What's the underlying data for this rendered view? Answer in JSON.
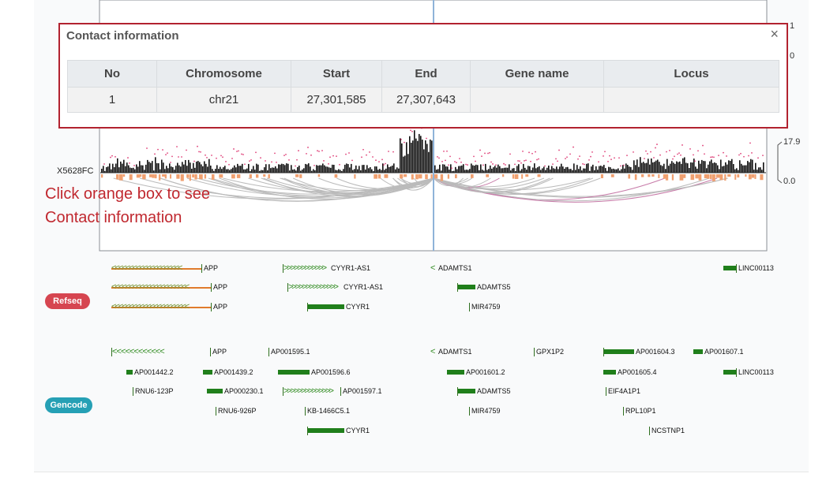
{
  "dialog": {
    "title": "Contact information",
    "close_glyph": "×",
    "columns": [
      "No",
      "Chromosome",
      "Start",
      "End",
      "Gene name",
      "Locus"
    ],
    "rows": [
      {
        "no": "1",
        "chromosome": "chr21",
        "start": "27,301,585",
        "end": "27,307,643",
        "gene_name": "",
        "locus": ""
      }
    ]
  },
  "track": {
    "sample_label": "X5628FC",
    "y_ticks_top": [
      "1",
      "0"
    ],
    "y_ticks_signal": [
      "17.9",
      "0.0"
    ]
  },
  "hint": {
    "line1": "Click orange box to see",
    "line2": "Contact information"
  },
  "badges": {
    "refseq": "Refseq",
    "gencode": "Gencode"
  },
  "refseq_genes": {
    "app1": "APP",
    "app2": "APP",
    "app3": "APP",
    "cyyr1_as1_a": "CYYR1-AS1",
    "cyyr1_as1_b": "CYYR1-AS1",
    "cyyr1": "CYYR1",
    "adamts1": "ADAMTS1",
    "adamts5": "ADAMTS5",
    "mir4759": "MIR4759",
    "linc00113": "LINC00113"
  },
  "gencode_genes": {
    "app": "APP",
    "ap001595_1": "AP001595.1",
    "adamts1": "ADAMTS1",
    "gpx1p2": "GPX1P2",
    "ap001604_3": "AP001604.3",
    "ap001607_1": "AP001607.1",
    "ap001442_2": "AP001442.2",
    "ap001439_2": "AP001439.2",
    "ap001596_6": "AP001596.6",
    "ap001601_2": "AP001601.2",
    "ap001605_4": "AP001605.4",
    "linc00113": "LINC00113",
    "rnu6_123p": "RNU6-123P",
    "ap000230_1": "AP000230.1",
    "ap001597_1": "AP001597.1",
    "adamts5": "ADAMTS5",
    "eif4a1p1": "EIF4A1P1",
    "rnu6_926p": "RNU6-926P",
    "kb_1466c5_1": "KB-1466C5.1",
    "mir4759": "MIR4759",
    "rpl10p1": "RPL10P1",
    "cyyr1": "CYYR1",
    "ncstnp1": "NCSTNP1"
  },
  "colors": {
    "dialog_border": "#b2222f",
    "hint_text": "#c0282f",
    "signal_bars": "#111111",
    "signal_dots": "#e0457b",
    "contact_boxes": "#f0a070",
    "arcs": "#bbbbbb",
    "viewpoint_line": "#8fb3d9",
    "refseq_badge": "#d64550",
    "gencode_badge": "#26a0b5",
    "gene_green": "#207f1b",
    "gene_olive": "#6f8f2a",
    "gene_orange": "#e07b2c"
  }
}
